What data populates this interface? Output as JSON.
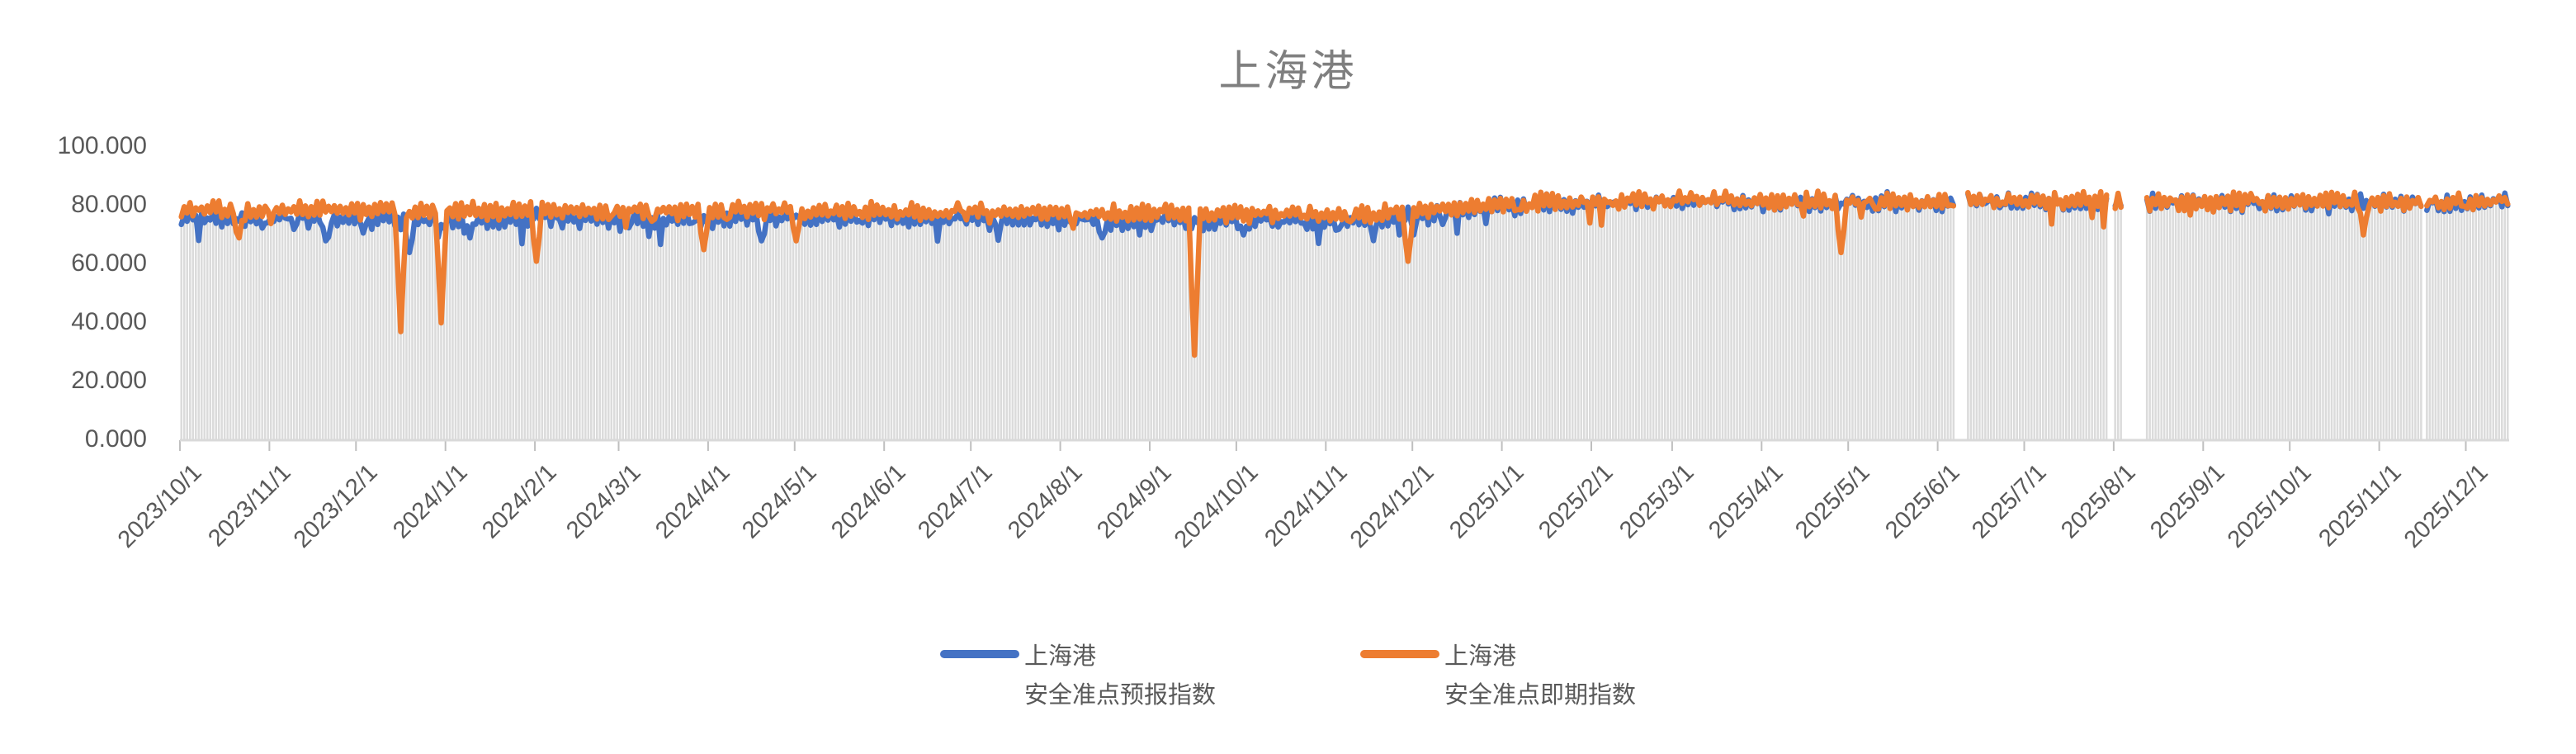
{
  "title": "上海港",
  "chart_data": {
    "type": "line",
    "title": "上海港",
    "ylim": [
      0,
      100
    ],
    "grid": "off",
    "legend_position": "bottom-center",
    "y_tick_labels": [
      "100.000",
      "80.000",
      "60.000",
      "40.000",
      "20.000",
      "0.000"
    ],
    "y_tick_values": [
      100,
      80,
      60,
      40,
      20,
      0
    ],
    "x_start": "2023-10-01",
    "x_end": "2025-12-15",
    "x_tick_labels": [
      "2023/10/1",
      "2023/11/1",
      "2023/12/1",
      "2024/1/1",
      "2024/2/1",
      "2024/3/1",
      "2024/4/1",
      "2024/5/1",
      "2024/6/1",
      "2024/7/1",
      "2024/8/1",
      "2024/9/1",
      "2024/10/1",
      "2024/11/1",
      "2024/12/1",
      "2025/1/1",
      "2025/2/1",
      "2025/3/1",
      "2025/4/1",
      "2025/5/1",
      "2025/6/1",
      "2025/7/1",
      "2025/8/1",
      "2025/9/1",
      "2025/10/1",
      "2025/11/1",
      "2025/12/1"
    ],
    "series": [
      {
        "name": "上海港 安全准点预报指数",
        "color": "#4472C4",
        "base_anchors": [
          [
            "2023-10-01",
            75.5
          ],
          [
            "2024-06-01",
            75.5
          ],
          [
            "2024-11-15",
            74.5
          ],
          [
            "2024-12-20",
            78.5
          ],
          [
            "2025-01-20",
            81.0
          ],
          [
            "2025-12-15",
            81.0
          ]
        ],
        "dips": [
          [
            "2023-11-20",
            68
          ],
          [
            "2023-12-19",
            64
          ],
          [
            "2024-01-09",
            69
          ],
          [
            "2024-04-19",
            68
          ],
          [
            "2024-08-15",
            69
          ],
          [
            "2024-10-03",
            70
          ]
        ]
      },
      {
        "name": "上海港 安全准点即期指数",
        "color": "#ED7D31",
        "base_anchors": [
          [
            "2023-10-01",
            78.5
          ],
          [
            "2024-06-01",
            78.0
          ],
          [
            "2024-11-15",
            77.0
          ],
          [
            "2024-12-20",
            79.5
          ],
          [
            "2025-01-20",
            81.5
          ],
          [
            "2025-12-15",
            81.3
          ]
        ],
        "dips": [
          [
            "2023-10-21",
            69
          ],
          [
            "2023-12-16",
            37
          ],
          [
            "2023-12-30",
            40
          ],
          [
            "2024-02-01",
            61
          ],
          [
            "2024-03-30",
            65
          ],
          [
            "2024-05-01",
            68
          ],
          [
            "2024-09-16",
            29
          ],
          [
            "2024-11-29",
            61
          ],
          [
            "2025-04-28",
            64
          ],
          [
            "2025-10-26",
            70
          ]
        ]
      }
    ],
    "gaps": [
      [
        "2025-06-07",
        "2025-06-10"
      ],
      [
        "2025-07-30",
        "2025-07-31"
      ],
      [
        "2025-08-04",
        "2025-08-11"
      ],
      [
        "2025-11-16",
        "2025-11-16"
      ]
    ],
    "bar_color": "#DBDBDB",
    "axis_color": "#D9D9D9",
    "tick_color": "#BFBFBF",
    "label_color": "#595959",
    "title_color": "#7F7F7F",
    "legend": [
      {
        "line1": "上海港",
        "line2": "安全准点预报指数",
        "color": "#4472C4"
      },
      {
        "line1": "上海港",
        "line2": "安全准点即期指数",
        "color": "#ED7D31"
      }
    ]
  }
}
